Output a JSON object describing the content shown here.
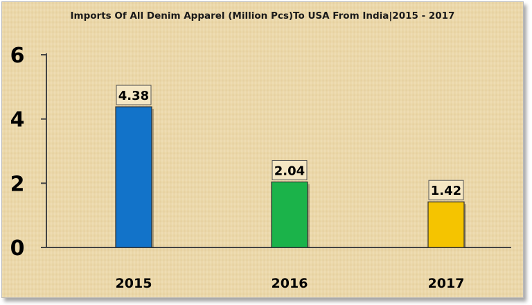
{
  "chart_data": {
    "type": "bar",
    "title": "Imports Of All Denim Apparel (Million Pcs)To USA From India|2015 - 2017",
    "categories": [
      "2015",
      "2016",
      "2017"
    ],
    "values": [
      4.38,
      2.04,
      1.42
    ],
    "data_labels": [
      "4.38",
      "2.04",
      "1.42"
    ],
    "bar_colors": [
      "#1273c9",
      "#1bb34a",
      "#f5c400"
    ],
    "yticks": [
      0,
      2,
      4,
      6
    ],
    "ytick_labels": [
      "0",
      "2",
      "4",
      "6"
    ],
    "ylim": [
      0,
      6
    ],
    "xlabel": "",
    "ylabel": "",
    "grid": false,
    "legend": "none"
  }
}
